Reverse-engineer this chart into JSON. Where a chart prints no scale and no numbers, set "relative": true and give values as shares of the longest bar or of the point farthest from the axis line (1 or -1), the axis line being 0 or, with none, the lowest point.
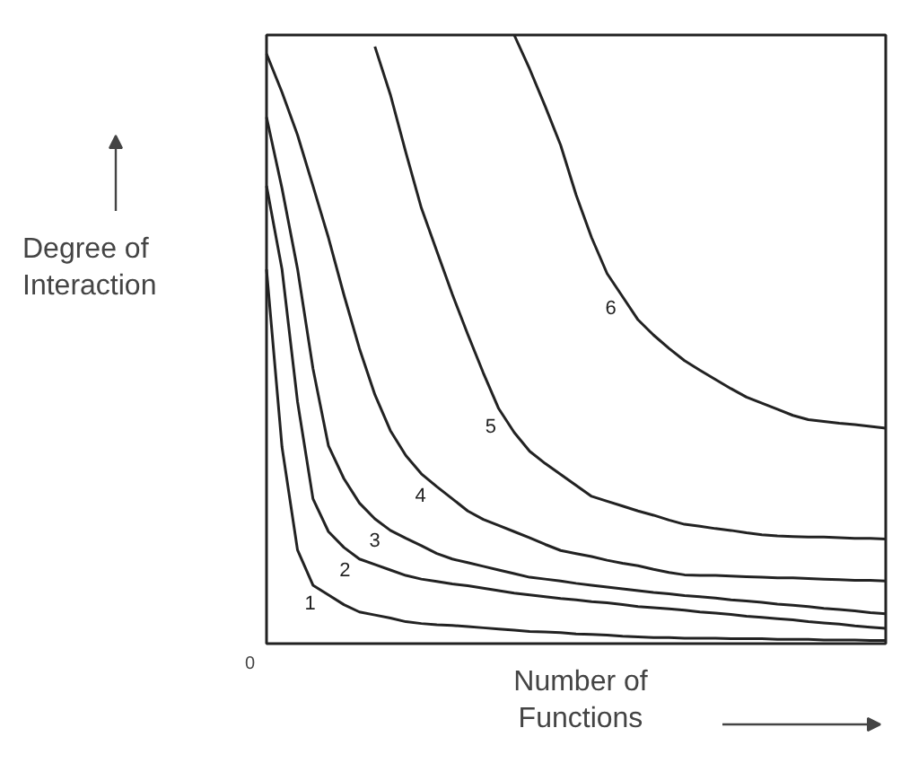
{
  "chart_data": {
    "type": "line",
    "relative": true,
    "xlabel": "Number of\nFunctions",
    "ylabel": "Degree of\nInteraction",
    "annotations": [
      "0"
    ],
    "grid": false,
    "line_style": "solid",
    "marker": "none",
    "categories": [
      null,
      null,
      null,
      null,
      null,
      null,
      null,
      null,
      null,
      null,
      null,
      null,
      null,
      null,
      null,
      null,
      null,
      null,
      null,
      null,
      null,
      null,
      null,
      null,
      null,
      null,
      null,
      null,
      null,
      null,
      null,
      null,
      null,
      null,
      null,
      null,
      null,
      null,
      null,
      null,
      null
    ],
    "series": [
      {
        "name": "1",
        "color": "#222222",
        "values": [
          0.615,
          0.323,
          0.154,
          0.096,
          0.08,
          0.064,
          0.052,
          0.047,
          0.042,
          0.036,
          0.033,
          0.031,
          0.03,
          0.028,
          0.026,
          0.024,
          0.022,
          0.02,
          0.019,
          0.018,
          0.016,
          0.015,
          0.014,
          0.012,
          0.011,
          0.01,
          0.01,
          0.009,
          0.009,
          0.009,
          0.008,
          0.008,
          0.008,
          0.007,
          0.007,
          0.007,
          0.006,
          0.006,
          0.006,
          0.005,
          0.005
        ]
      },
      {
        "name": "2",
        "color": "#222222",
        "values": [
          0.752,
          0.615,
          0.398,
          0.238,
          0.184,
          0.158,
          0.139,
          0.13,
          0.121,
          0.112,
          0.106,
          0.102,
          0.098,
          0.095,
          0.091,
          0.087,
          0.083,
          0.08,
          0.077,
          0.074,
          0.072,
          0.069,
          0.067,
          0.064,
          0.061,
          0.059,
          0.057,
          0.055,
          0.052,
          0.05,
          0.048,
          0.045,
          0.043,
          0.041,
          0.039,
          0.036,
          0.034,
          0.032,
          0.029,
          0.027,
          0.025
        ]
      },
      {
        "name": "3",
        "color": "#222222",
        "values": [
          0.865,
          0.748,
          0.616,
          0.452,
          0.325,
          0.271,
          0.231,
          0.205,
          0.186,
          0.173,
          0.161,
          0.148,
          0.139,
          0.133,
          0.127,
          0.121,
          0.115,
          0.109,
          0.106,
          0.103,
          0.099,
          0.096,
          0.093,
          0.09,
          0.087,
          0.084,
          0.082,
          0.079,
          0.077,
          0.075,
          0.072,
          0.07,
          0.068,
          0.065,
          0.063,
          0.061,
          0.058,
          0.056,
          0.054,
          0.051,
          0.049
        ]
      },
      {
        "name": "4",
        "color": "#222222",
        "values": [
          0.969,
          0.906,
          0.836,
          0.752,
          0.667,
          0.573,
          0.485,
          0.409,
          0.35,
          0.309,
          0.279,
          0.258,
          0.238,
          0.218,
          0.204,
          0.194,
          0.184,
          0.174,
          0.163,
          0.153,
          0.148,
          0.143,
          0.137,
          0.132,
          0.128,
          0.122,
          0.117,
          0.113,
          0.112,
          0.112,
          0.111,
          0.11,
          0.109,
          0.108,
          0.108,
          0.107,
          0.106,
          0.105,
          0.104,
          0.104,
          0.103
        ]
      },
      {
        "name": "5",
        "color": "#222222",
        "values": [
          null,
          null,
          null,
          null,
          null,
          null,
          null,
          0.981,
          0.902,
          0.807,
          0.716,
          0.645,
          0.574,
          0.508,
          0.445,
          0.386,
          0.347,
          0.316,
          0.296,
          0.278,
          0.26,
          0.242,
          0.234,
          0.226,
          0.218,
          0.211,
          0.203,
          0.196,
          0.193,
          0.189,
          0.186,
          0.182,
          0.179,
          0.177,
          0.176,
          0.175,
          0.175,
          0.174,
          0.173,
          0.173,
          0.172
        ]
      },
      {
        "name": "6",
        "color": "#222222",
        "values": [
          null,
          null,
          null,
          null,
          null,
          null,
          null,
          null,
          null,
          null,
          null,
          null,
          null,
          null,
          null,
          null,
          1,
          0.944,
          0.883,
          0.819,
          0.737,
          0.667,
          0.608,
          0.57,
          0.532,
          0.507,
          0.485,
          0.465,
          0.449,
          0.434,
          0.419,
          0.405,
          0.395,
          0.385,
          0.375,
          0.368,
          0.365,
          0.362,
          0.36,
          0.357,
          0.354
        ]
      }
    ]
  }
}
